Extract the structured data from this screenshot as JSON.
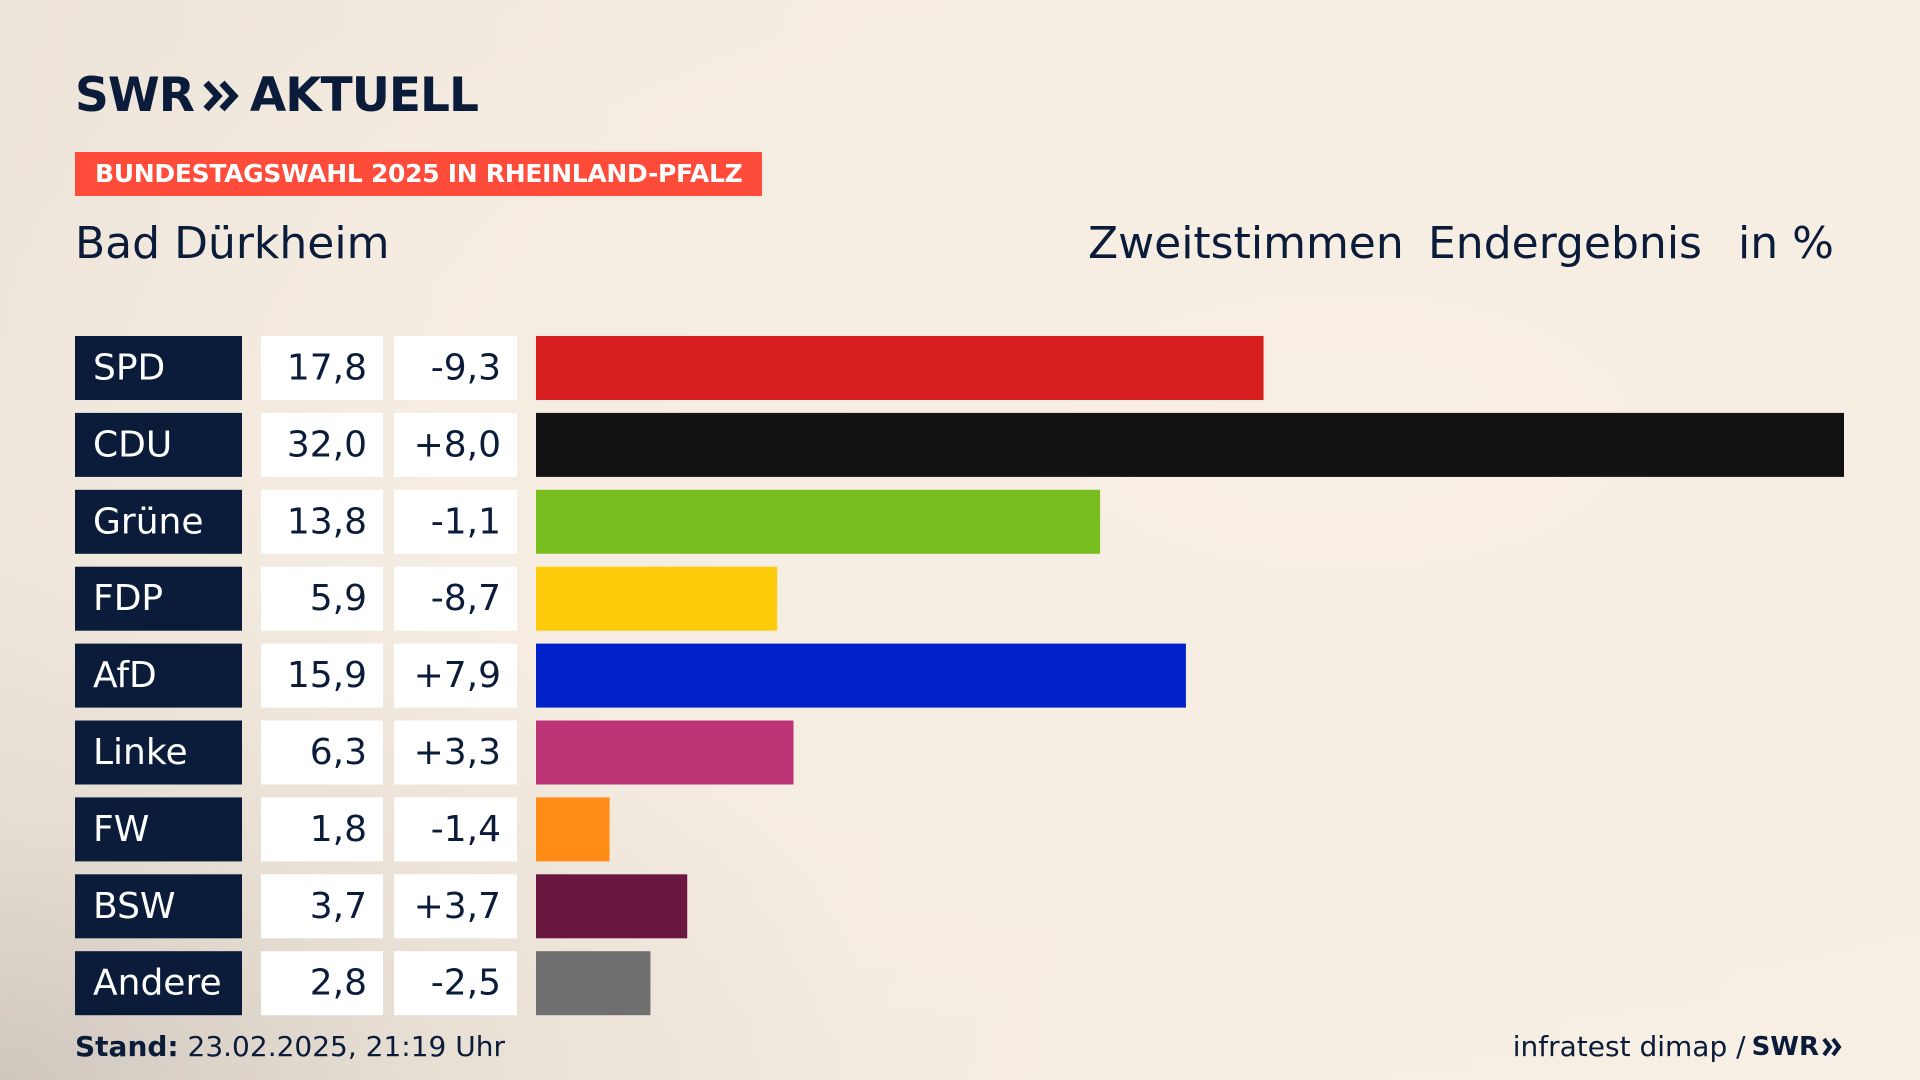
{
  "brand": {
    "logo_text": "SWR",
    "logo_suffix": "AKTUELL"
  },
  "tag": "BUNDESTAGSWAHL 2025 IN RHEINLAND-PFALZ",
  "region": "Bad Dürkheim",
  "header": {
    "vote_type": "Zweitstimmen",
    "result_type": "Endergebnis",
    "unit": "in %"
  },
  "footer": {
    "stand_label": "Stand:",
    "stand_value": "23.02.2025, 21:19 Uhr",
    "source": "infratest dimap /",
    "source_brand": "SWR"
  },
  "chart_data": {
    "type": "bar",
    "orientation": "horizontal",
    "categories": [
      "SPD",
      "CDU",
      "Grüne",
      "FDP",
      "AfD",
      "Linke",
      "FW",
      "BSW",
      "Andere"
    ],
    "values": [
      17.8,
      32.0,
      13.8,
      5.9,
      15.9,
      6.3,
      1.8,
      3.7,
      2.8
    ],
    "value_labels": [
      "17,8",
      "32,0",
      "13,8",
      "5,9",
      "15,9",
      "6,3",
      "1,8",
      "3,7",
      "2,8"
    ],
    "change_labels": [
      "-9,3",
      "+8,0",
      "-1,1",
      "-8,7",
      "+7,9",
      "+3,3",
      "-1,4",
      "+3,7",
      "-2,5"
    ],
    "changes": [
      -9.3,
      8.0,
      -1.1,
      -8.7,
      7.9,
      3.3,
      -1.4,
      3.7,
      -2.5
    ],
    "colors": [
      "#d71f1f",
      "#121212",
      "#78be1e",
      "#ffcc0b",
      "#0021c8",
      "#bc3475",
      "#ff8c16",
      "#6a173f",
      "#6f6f6f"
    ],
    "xlim": [
      0,
      32.0
    ],
    "grid": false,
    "legend": "none"
  }
}
